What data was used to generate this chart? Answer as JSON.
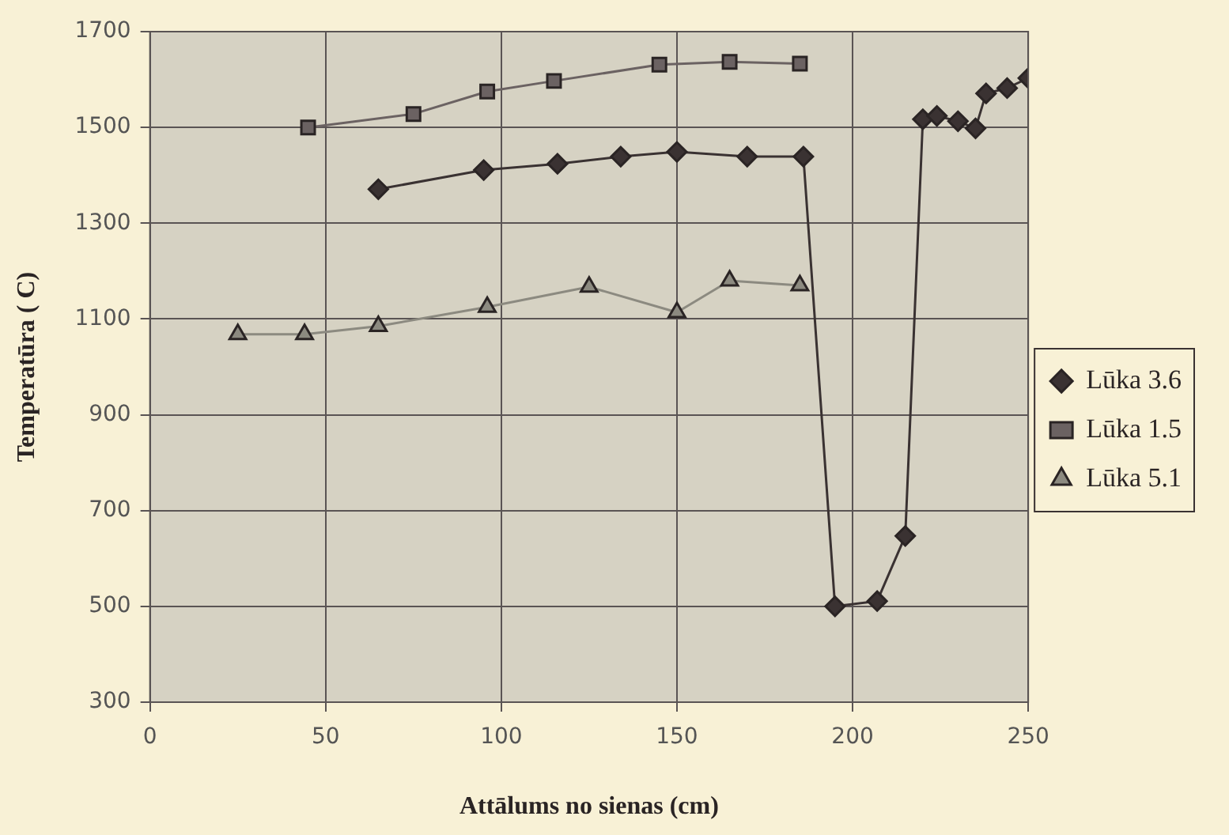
{
  "chart_data": {
    "type": "line",
    "xlabel": "Attālums no sienas (cm)",
    "ylabel": "Temperatūra ( C)",
    "xlim": [
      0,
      250
    ],
    "xticks": [
      0,
      50,
      100,
      150,
      200,
      250
    ],
    "ylim": [
      300,
      1700
    ],
    "yticks": [
      300,
      500,
      700,
      900,
      1100,
      1300,
      1500,
      1700
    ],
    "grid": true,
    "legend": "right",
    "series": [
      {
        "name": "Lūka 3.6",
        "color": "#3a3232",
        "marker": "diamond",
        "x": [
          65,
          95,
          116,
          134,
          150,
          170,
          186,
          195,
          207,
          215,
          220,
          224,
          230,
          235,
          238,
          244,
          250
        ],
        "values": [
          1371,
          1411,
          1424,
          1439,
          1449,
          1439,
          1439,
          500,
          511,
          647,
          1517,
          1524,
          1513,
          1498,
          1571,
          1582,
          1603
        ]
      },
      {
        "name": "Lūka 1.5",
        "color": "#6b6262",
        "marker": "square",
        "x": [
          45,
          75,
          96,
          115,
          145,
          165,
          185
        ],
        "values": [
          1500,
          1528,
          1575,
          1597,
          1631,
          1637,
          1633
        ]
      },
      {
        "name": "Lūka 5.1",
        "color": "#8c8a80",
        "marker": "triangle",
        "x": [
          25,
          44,
          65,
          96,
          125,
          150,
          165,
          185
        ],
        "values": [
          1068,
          1068,
          1085,
          1125,
          1167,
          1114,
          1180,
          1170
        ]
      }
    ]
  }
}
